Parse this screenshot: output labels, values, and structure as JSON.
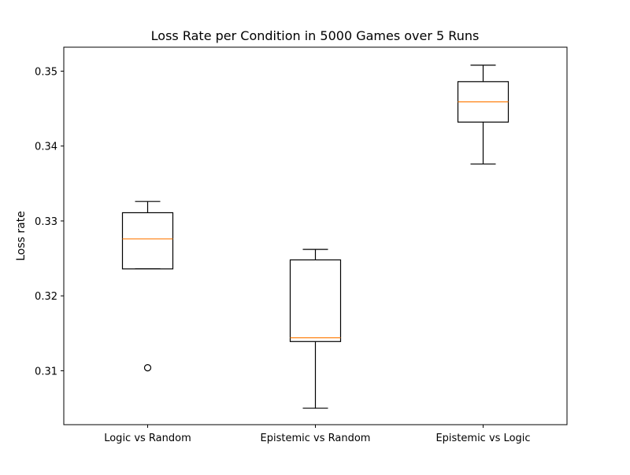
{
  "chart_data": {
    "type": "box",
    "title": "Loss Rate per Condition in 5000 Games over 5 Runs",
    "xlabel": "",
    "ylabel": "Loss rate",
    "ylim": [
      0.3028,
      0.3532
    ],
    "yticks": [
      0.31,
      0.32,
      0.33,
      0.34,
      0.35
    ],
    "ytick_labels": [
      "0.31",
      "0.32",
      "0.33",
      "0.34",
      "0.35"
    ],
    "grid": false,
    "categories": [
      "Logic vs Random",
      "Epistemic vs Random",
      "Epistemic vs Logic"
    ],
    "boxes": [
      {
        "label": "Logic vs Random",
        "whisker_low": 0.3236,
        "q1": 0.3236,
        "median": 0.3276,
        "q3": 0.3311,
        "whisker_high": 0.3326,
        "outliers": [
          0.3104
        ]
      },
      {
        "label": "Epistemic vs Random",
        "whisker_low": 0.305,
        "q1": 0.3139,
        "median": 0.3144,
        "q3": 0.3248,
        "whisker_high": 0.3262
      },
      {
        "label": "Epistemic vs Logic",
        "whisker_low": 0.3376,
        "q1": 0.3432,
        "median": 0.3459,
        "q3": 0.3486,
        "whisker_high": 0.3508,
        "outliers": []
      }
    ],
    "colors": {
      "box": "#000000",
      "median": "#ff7f0e",
      "axes": "#000000",
      "background": "#ffffff"
    }
  }
}
